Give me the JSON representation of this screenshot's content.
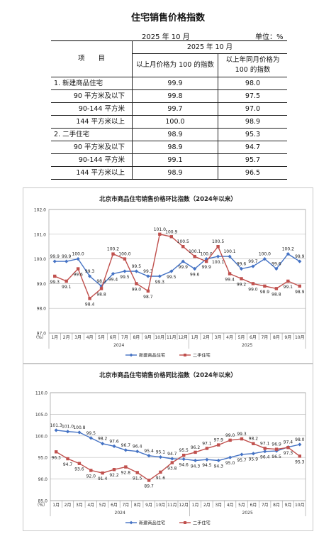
{
  "title": "住宅销售价格指数",
  "date_label": "2025 年 10 月",
  "unit_label": "单位：%",
  "table": {
    "item_header": "项　　目",
    "period_header": "2025 年 10 月",
    "col_mom": "以上月价格为 100 的指数",
    "col_yoy": "以上年同月价格为 100 的指数",
    "rows": [
      {
        "label": "1. 新建商品住宅",
        "mom": "99.9",
        "yoy": "98.0"
      },
      {
        "label": "90 平方米及以下",
        "mom": "99.8",
        "yoy": "97.5"
      },
      {
        "label": "90-144 平方米",
        "mom": "99.7",
        "yoy": "97.0"
      },
      {
        "label": "144 平方米以上",
        "mom": "100.0",
        "yoy": "98.9"
      },
      {
        "label": "2. 二手住宅",
        "mom": "98.9",
        "yoy": "95.3"
      },
      {
        "label": "90 平方米及以下",
        "mom": "98.9",
        "yoy": "94.7"
      },
      {
        "label": "90-144 平方米",
        "mom": "99.1",
        "yoy": "95.7"
      },
      {
        "label": "144 平方米以上",
        "mom": "98.9",
        "yoy": "96.5"
      }
    ]
  },
  "chart_data": [
    {
      "type": "line",
      "title": "北京市商品住宅销售价格环比指数（2024年以来）",
      "ylabel": "（%）",
      "ylim": [
        97.0,
        102.0
      ],
      "yticks": [
        "97.0",
        "98.0",
        "99.0",
        "100.0",
        "101.0",
        "102.0"
      ],
      "categories": [
        "1月",
        "2月",
        "3月",
        "4月",
        "5月",
        "6月",
        "7月",
        "8月",
        "9月",
        "10月",
        "11月",
        "12月",
        "1月",
        "2月",
        "3月",
        "4月",
        "5月",
        "6月",
        "7月",
        "8月",
        "9月",
        "10月"
      ],
      "years": [
        {
          "label": "2024",
          "from": 0,
          "to": 11
        },
        {
          "label": "2025",
          "from": 12,
          "to": 21
        }
      ],
      "legend_position": "bottom",
      "series": [
        {
          "name": "新建商品住宅",
          "color": "#4472c4",
          "marker": "diamond",
          "values": [
            99.9,
            99.9,
            100.0,
            99.3,
            98.9,
            99.4,
            99.5,
            99.5,
            99.3,
            99.3,
            99.5,
            99.9,
            99.6,
            100.0,
            100.1,
            100.1,
            99.6,
            99.7,
            100.0,
            99.6,
            100.2,
            99.9
          ]
        },
        {
          "name": "二手住宅",
          "color": "#c0504d",
          "marker": "square",
          "values": [
            99.3,
            99.1,
            99.6,
            98.4,
            98.8,
            100.2,
            100.0,
            99.0,
            98.7,
            101.0,
            100.9,
            100.5,
            100.1,
            99.9,
            100.5,
            99.4,
            99.2,
            99.0,
            98.9,
            98.8,
            99.1,
            98.9
          ]
        }
      ]
    },
    {
      "type": "line",
      "title": "北京市商品住宅销售价格同比指数（2024年以来）",
      "ylabel": "（%）",
      "ylim": [
        85.0,
        110.0
      ],
      "yticks": [
        "85.0",
        "90.0",
        "95.0",
        "100.0",
        "105.0",
        "110.0"
      ],
      "categories": [
        "1月",
        "2月",
        "3月",
        "4月",
        "5月",
        "6月",
        "7月",
        "8月",
        "9月",
        "10月",
        "11月",
        "12月",
        "1月",
        "2月",
        "3月",
        "4月",
        "5月",
        "6月",
        "7月",
        "8月",
        "9月",
        "10月"
      ],
      "years": [
        {
          "label": "2024",
          "from": 0,
          "to": 11
        },
        {
          "label": "2025",
          "from": 12,
          "to": 21
        }
      ],
      "legend_position": "bottom",
      "series": [
        {
          "name": "新建商品住宅",
          "color": "#4472c4",
          "marker": "diamond",
          "values": [
            101.3,
            101.0,
            100.8,
            99.5,
            98.2,
            97.6,
            96.7,
            96.4,
            95.4,
            95.1,
            94.7,
            94.6,
            94.3,
            94.5,
            94.3,
            95.0,
            95.7,
            95.9,
            96.4,
            96.5,
            97.4,
            98.0
          ]
        },
        {
          "name": "二手住宅",
          "color": "#c0504d",
          "marker": "square",
          "values": [
            96.3,
            94.7,
            93.6,
            92.0,
            91.4,
            92.2,
            92.8,
            91.5,
            89.7,
            91.6,
            93.8,
            95.5,
            96.2,
            97.1,
            97.9,
            99.0,
            99.3,
            98.2,
            97.1,
            96.9,
            97.3,
            95.3
          ]
        }
      ]
    }
  ]
}
